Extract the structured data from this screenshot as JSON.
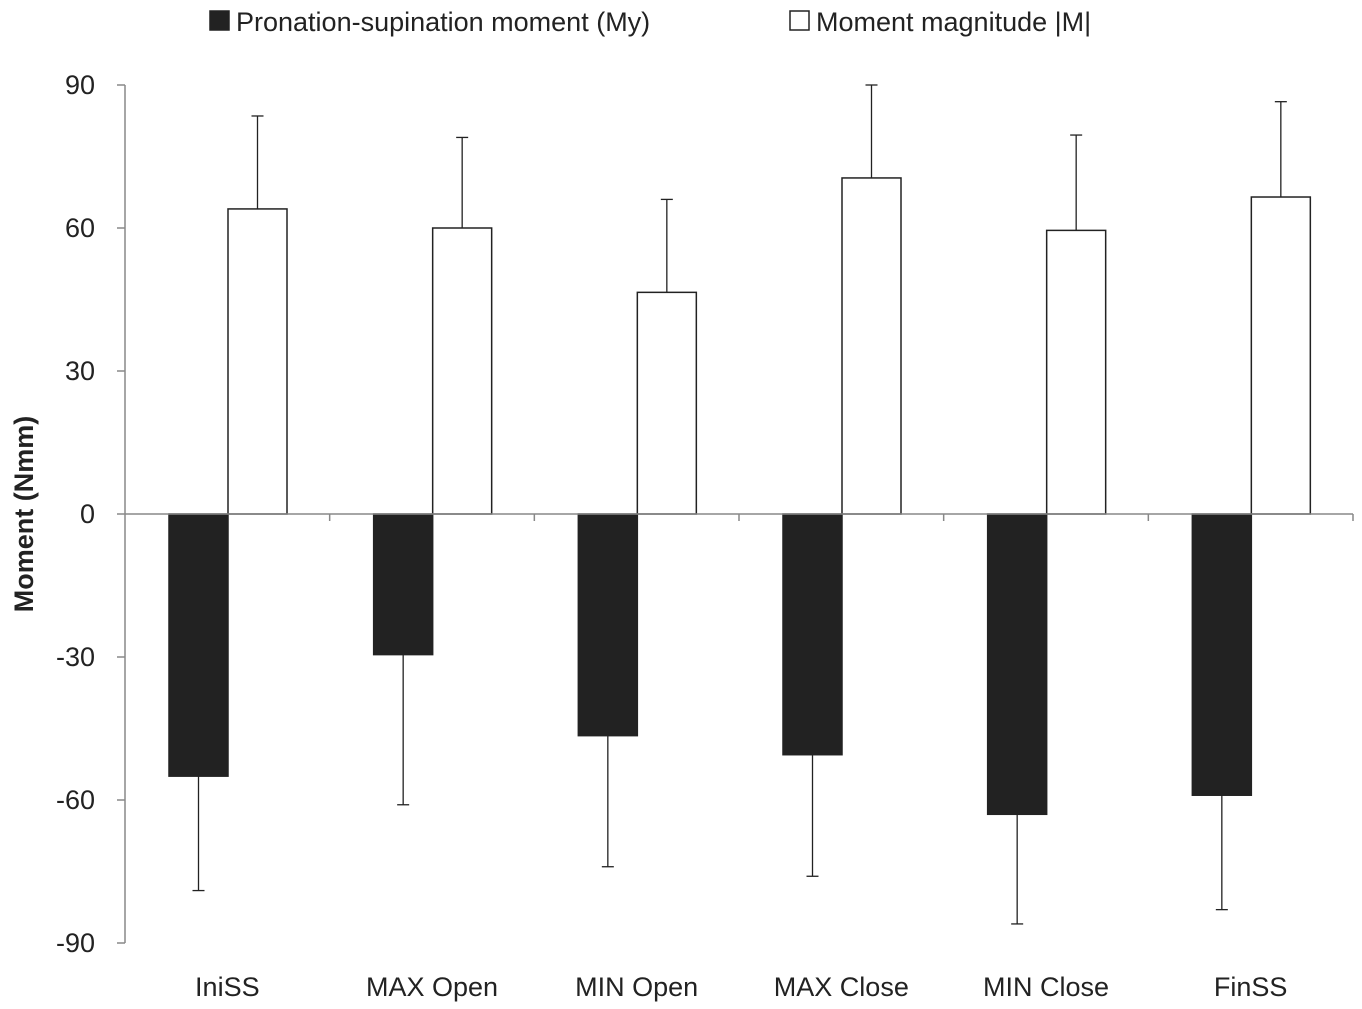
{
  "chart_data": {
    "type": "bar",
    "title": "",
    "xlabel": "",
    "ylabel": "Moment (Nmm)",
    "ylim": [
      -90,
      90
    ],
    "yticks": [
      90,
      60,
      30,
      0,
      -30,
      -60,
      -90
    ],
    "grid": false,
    "legend_position": "top",
    "categories": [
      "IniSS",
      "MAX Open",
      "MIN Open",
      "MAX Close",
      "MIN Close",
      "FinSS"
    ],
    "series": [
      {
        "name": "Pronation-supination moment (My)",
        "color": "#222222",
        "fill_style": "solid",
        "values": [
          -55,
          -29.5,
          -46.5,
          -50.5,
          -63,
          -59
        ],
        "error": [
          24,
          31.5,
          27.5,
          25.5,
          23,
          24
        ]
      },
      {
        "name": "Moment magnitude |M|",
        "color": "#ffffff",
        "fill_style": "hollow",
        "values": [
          64,
          60,
          46.5,
          70.5,
          59.5,
          66.5
        ],
        "error": [
          19.5,
          19,
          19.5,
          19.5,
          20,
          20
        ]
      }
    ]
  }
}
